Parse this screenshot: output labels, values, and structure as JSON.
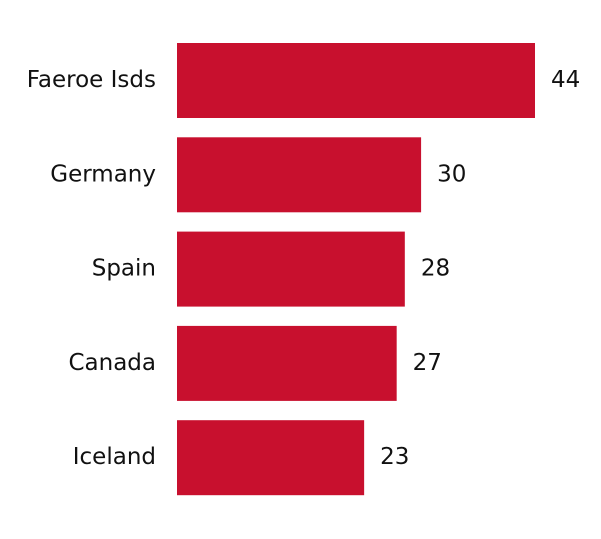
{
  "chart_data": {
    "type": "bar",
    "orientation": "horizontal",
    "categories": [
      "Faeroe Isds",
      "Germany",
      "Spain",
      "Canada",
      "Iceland"
    ],
    "values": [
      44,
      30,
      28,
      27,
      23
    ],
    "xlim": [
      0,
      44
    ],
    "grid": false,
    "bar_color": "#c8102e",
    "title": "",
    "xlabel": "",
    "ylabel": ""
  }
}
